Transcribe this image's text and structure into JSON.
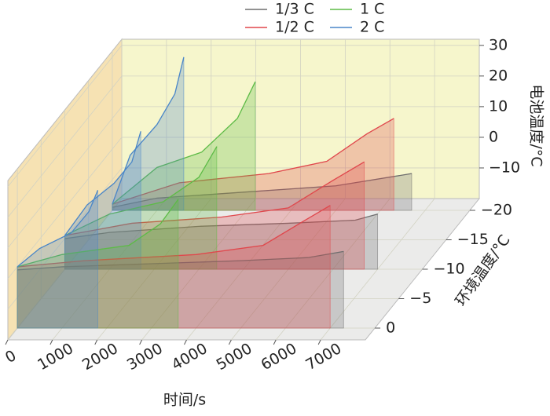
{
  "chart_data": {
    "type": "waterfall3d",
    "xlabel": "时间/s",
    "ylabel": "电池温度/°C",
    "zlabel": "环境温度/°C",
    "xlim": [
      0,
      8000
    ],
    "xticks": [
      0,
      1000,
      2000,
      3000,
      4000,
      5000,
      6000,
      7000
    ],
    "ylim": [
      -20,
      32
    ],
    "yticks": [
      {
        "value": -10,
        "label": "−10"
      },
      0,
      10,
      20,
      30
    ],
    "zlim": [
      2,
      -22
    ],
    "zticks": [
      0,
      {
        "value": -5,
        "label": "−5"
      },
      {
        "value": -10,
        "label": "−10"
      },
      {
        "value": -15,
        "label": "−15"
      },
      {
        "value": -20,
        "label": "−20"
      }
    ],
    "grid": true,
    "series": [
      {
        "name": "1/3 C",
        "color": "#6e6e6e",
        "slices": [
          {
            "ambient": 0,
            "x": [
              0,
              1000,
              3000,
              5000,
              6500,
              7300
            ],
            "values": [
              -1,
              0,
              1,
              2,
              3,
              5
            ]
          },
          {
            "ambient": -10,
            "x": [
              0,
              1000,
              3000,
              5000,
              6500,
              7000
            ],
            "values": [
              -10,
              -8,
              -6,
              -5,
              -4,
              -2
            ]
          },
          {
            "ambient": -20,
            "x": [
              0,
              1000,
              3000,
              5000,
              6700
            ],
            "values": [
              -19,
              -16,
              -14,
              -12,
              -8
            ]
          }
        ]
      },
      {
        "name": "1/2 C",
        "color": "#e0474c",
        "slices": [
          {
            "ambient": 0,
            "x": [
              0,
              1500,
              4000,
              5500,
              6300,
              7000
            ],
            "values": [
              0,
              2,
              4,
              7,
              14,
              20
            ]
          },
          {
            "ambient": -10,
            "x": [
              0,
              1500,
              3500,
              5000,
              6000,
              6700
            ],
            "values": [
              -9,
              -5,
              -3,
              0,
              9,
              15
            ]
          },
          {
            "ambient": -20,
            "x": [
              0,
              1500,
              3500,
              4800,
              5700,
              6300
            ],
            "values": [
              -18,
              -11,
              -8,
              -4,
              5,
              10
            ]
          }
        ]
      },
      {
        "name": "1 C",
        "color": "#5dbb46",
        "slices": [
          {
            "ambient": 0,
            "x": [
              0,
              1000,
              2500,
              3200,
              3600
            ],
            "values": [
              0,
              4,
              7,
              14,
              22
            ]
          },
          {
            "ambient": -10,
            "x": [
              0,
              1000,
              2200,
              3000,
              3400
            ],
            "values": [
              -9,
              -2,
              2,
              10,
              20
            ]
          },
          {
            "ambient": -20,
            "x": [
              0,
              1000,
              2000,
              2800,
              3200
            ],
            "values": [
              -18,
              -6,
              -1,
              10,
              22
            ]
          }
        ]
      },
      {
        "name": "2 C",
        "color": "#4a86c8",
        "slices": [
          {
            "ambient": 0,
            "x": [
              0,
              500,
              1200,
              1600,
              1800
            ],
            "values": [
              0,
              6,
              11,
              18,
              25
            ]
          },
          {
            "ambient": -10,
            "x": [
              0,
              500,
              1100,
              1500,
              1700
            ],
            "values": [
              -9,
              1,
              8,
              15,
              25
            ]
          },
          {
            "ambient": -20,
            "x": [
              0,
              400,
              1000,
              1400,
              1600
            ],
            "values": [
              -18,
              -2,
              8,
              18,
              30
            ]
          }
        ]
      }
    ]
  }
}
